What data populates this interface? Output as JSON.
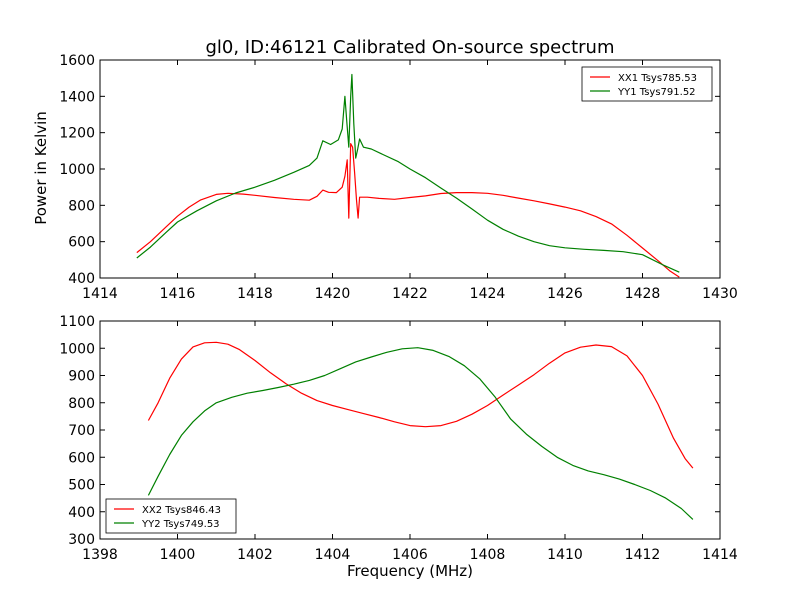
{
  "chart_data": [
    {
      "type": "line",
      "title": "gl0, ID:46121 Calibrated On-source spectrum",
      "xlabel": "",
      "ylabel": "Power in Kelvin",
      "xlim": [
        1414,
        1430
      ],
      "ylim": [
        400,
        1600
      ],
      "xticks": [
        1414,
        1416,
        1418,
        1420,
        1422,
        1424,
        1426,
        1428,
        1430
      ],
      "yticks": [
        400,
        600,
        800,
        1000,
        1200,
        1400,
        1600
      ],
      "grid": false,
      "legend_position": "top-right",
      "series": [
        {
          "name": "XX1 Tsys785.53",
          "color": "#ff0000",
          "points": [
            [
              1414.95,
              540
            ],
            [
              1415.3,
              600
            ],
            [
              1415.7,
              680
            ],
            [
              1416.0,
              740
            ],
            [
              1416.3,
              790
            ],
            [
              1416.6,
              830
            ],
            [
              1417.0,
              860
            ],
            [
              1417.3,
              866
            ],
            [
              1417.7,
              862
            ],
            [
              1418.0,
              855
            ],
            [
              1418.5,
              843
            ],
            [
              1419.0,
              833
            ],
            [
              1419.4,
              828
            ],
            [
              1419.6,
              850
            ],
            [
              1419.75,
              884
            ],
            [
              1419.9,
              872
            ],
            [
              1420.1,
              870
            ],
            [
              1420.25,
              900
            ],
            [
              1420.32,
              960
            ],
            [
              1420.38,
              1050
            ],
            [
              1420.42,
              730
            ],
            [
              1420.47,
              1140
            ],
            [
              1420.52,
              1120
            ],
            [
              1420.57,
              980
            ],
            [
              1420.62,
              830
            ],
            [
              1420.66,
              730
            ],
            [
              1420.7,
              845
            ],
            [
              1420.9,
              845
            ],
            [
              1421.2,
              838
            ],
            [
              1421.6,
              833
            ],
            [
              1422.0,
              843
            ],
            [
              1422.4,
              852
            ],
            [
              1422.8,
              865
            ],
            [
              1423.2,
              870
            ],
            [
              1423.6,
              870
            ],
            [
              1424.0,
              866
            ],
            [
              1424.4,
              855
            ],
            [
              1424.8,
              840
            ],
            [
              1425.2,
              825
            ],
            [
              1425.6,
              808
            ],
            [
              1426.0,
              790
            ],
            [
              1426.4,
              770
            ],
            [
              1426.8,
              738
            ],
            [
              1427.2,
              698
            ],
            [
              1427.6,
              635
            ],
            [
              1428.0,
              565
            ],
            [
              1428.4,
              495
            ],
            [
              1428.7,
              440
            ],
            [
              1428.95,
              405
            ]
          ]
        },
        {
          "name": "YY1 Tsys791.52",
          "color": "#008000",
          "points": [
            [
              1414.95,
              510
            ],
            [
              1415.3,
              570
            ],
            [
              1415.7,
              650
            ],
            [
              1416.0,
              708
            ],
            [
              1416.5,
              770
            ],
            [
              1417.0,
              825
            ],
            [
              1417.5,
              868
            ],
            [
              1418.0,
              900
            ],
            [
              1418.5,
              938
            ],
            [
              1419.0,
              982
            ],
            [
              1419.4,
              1020
            ],
            [
              1419.6,
              1060
            ],
            [
              1419.75,
              1155
            ],
            [
              1419.95,
              1135
            ],
            [
              1420.15,
              1160
            ],
            [
              1420.25,
              1220
            ],
            [
              1420.32,
              1400
            ],
            [
              1420.37,
              1260
            ],
            [
              1420.42,
              1120
            ],
            [
              1420.47,
              1400
            ],
            [
              1420.5,
              1520
            ],
            [
              1420.55,
              1250
            ],
            [
              1420.6,
              1060
            ],
            [
              1420.65,
              1110
            ],
            [
              1420.7,
              1165
            ],
            [
              1420.8,
              1120
            ],
            [
              1421.0,
              1110
            ],
            [
              1421.3,
              1080
            ],
            [
              1421.7,
              1040
            ],
            [
              1422.0,
              1000
            ],
            [
              1422.4,
              952
            ],
            [
              1422.8,
              895
            ],
            [
              1423.2,
              840
            ],
            [
              1423.6,
              780
            ],
            [
              1424.0,
              718
            ],
            [
              1424.4,
              668
            ],
            [
              1424.8,
              630
            ],
            [
              1425.2,
              600
            ],
            [
              1425.6,
              578
            ],
            [
              1426.0,
              566
            ],
            [
              1426.5,
              558
            ],
            [
              1427.0,
              552
            ],
            [
              1427.5,
              545
            ],
            [
              1428.0,
              528
            ],
            [
              1428.5,
              475
            ],
            [
              1428.95,
              432
            ]
          ]
        }
      ]
    },
    {
      "type": "line",
      "title": "",
      "xlabel": "Frequency (MHz)",
      "ylabel": "",
      "xlim": [
        1398,
        1414
      ],
      "ylim": [
        300,
        1100
      ],
      "xticks": [
        1398,
        1400,
        1402,
        1404,
        1406,
        1408,
        1410,
        1412,
        1414
      ],
      "yticks": [
        300,
        400,
        500,
        600,
        700,
        800,
        900,
        1000,
        1100
      ],
      "grid": false,
      "legend_position": "bottom-left",
      "series": [
        {
          "name": "XX2 Tsys846.43",
          "color": "#ff0000",
          "points": [
            [
              1399.25,
              735
            ],
            [
              1399.5,
              800
            ],
            [
              1399.8,
              890
            ],
            [
              1400.1,
              960
            ],
            [
              1400.4,
              1005
            ],
            [
              1400.7,
              1020
            ],
            [
              1401.0,
              1022
            ],
            [
              1401.3,
              1015
            ],
            [
              1401.6,
              995
            ],
            [
              1402.0,
              955
            ],
            [
              1402.4,
              910
            ],
            [
              1402.8,
              870
            ],
            [
              1403.2,
              835
            ],
            [
              1403.6,
              808
            ],
            [
              1404.0,
              790
            ],
            [
              1404.4,
              775
            ],
            [
              1404.8,
              760
            ],
            [
              1405.2,
              746
            ],
            [
              1405.6,
              730
            ],
            [
              1406.0,
              716
            ],
            [
              1406.4,
              712
            ],
            [
              1406.8,
              716
            ],
            [
              1407.2,
              732
            ],
            [
              1407.6,
              758
            ],
            [
              1408.0,
              790
            ],
            [
              1408.4,
              828
            ],
            [
              1408.8,
              865
            ],
            [
              1409.2,
              903
            ],
            [
              1409.6,
              945
            ],
            [
              1410.0,
              983
            ],
            [
              1410.4,
              1004
            ],
            [
              1410.8,
              1012
            ],
            [
              1411.2,
              1006
            ],
            [
              1411.6,
              972
            ],
            [
              1412.0,
              900
            ],
            [
              1412.4,
              795
            ],
            [
              1412.8,
              670
            ],
            [
              1413.1,
              595
            ],
            [
              1413.3,
              560
            ]
          ]
        },
        {
          "name": "YY2 Tsys749.53",
          "color": "#008000",
          "points": [
            [
              1399.25,
              460
            ],
            [
              1399.5,
              530
            ],
            [
              1399.8,
              610
            ],
            [
              1400.1,
              680
            ],
            [
              1400.4,
              730
            ],
            [
              1400.7,
              770
            ],
            [
              1401.0,
              800
            ],
            [
              1401.4,
              820
            ],
            [
              1401.8,
              835
            ],
            [
              1402.2,
              845
            ],
            [
              1402.6,
              856
            ],
            [
              1403.0,
              868
            ],
            [
              1403.4,
              882
            ],
            [
              1403.8,
              900
            ],
            [
              1404.2,
              925
            ],
            [
              1404.6,
              950
            ],
            [
              1405.0,
              968
            ],
            [
              1405.4,
              985
            ],
            [
              1405.8,
              998
            ],
            [
              1406.2,
              1002
            ],
            [
              1406.6,
              992
            ],
            [
              1407.0,
              970
            ],
            [
              1407.4,
              936
            ],
            [
              1407.8,
              888
            ],
            [
              1408.2,
              820
            ],
            [
              1408.6,
              740
            ],
            [
              1409.0,
              685
            ],
            [
              1409.4,
              640
            ],
            [
              1409.8,
              600
            ],
            [
              1410.2,
              570
            ],
            [
              1410.6,
              550
            ],
            [
              1411.0,
              536
            ],
            [
              1411.4,
              520
            ],
            [
              1411.8,
              500
            ],
            [
              1412.2,
              478
            ],
            [
              1412.6,
              450
            ],
            [
              1413.0,
              412
            ],
            [
              1413.3,
              372
            ]
          ]
        }
      ]
    }
  ]
}
